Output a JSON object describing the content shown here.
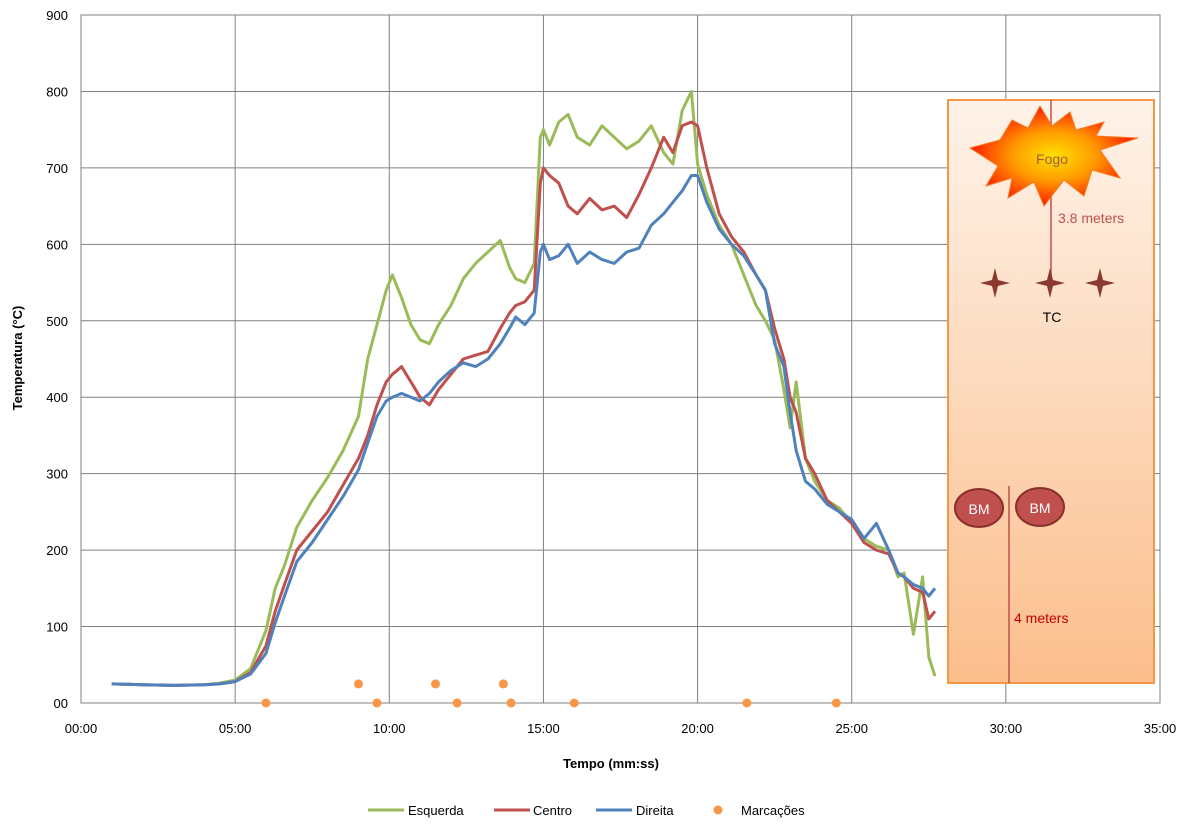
{
  "chart_data": {
    "type": "line",
    "title": "",
    "xlabel": "Tempo (mm:ss)",
    "ylabel": "Temperatura (°C)",
    "x_unit": "minutes",
    "xlim": [
      0,
      35
    ],
    "ylim": [
      0,
      900
    ],
    "x_ticks": [
      {
        "v": 0,
        "label": "00:00"
      },
      {
        "v": 5,
        "label": "05:00"
      },
      {
        "v": 10,
        "label": "10:00"
      },
      {
        "v": 15,
        "label": "15:00"
      },
      {
        "v": 20,
        "label": "20:00"
      },
      {
        "v": 25,
        "label": "25:00"
      },
      {
        "v": 30,
        "label": "30:00"
      },
      {
        "v": 35,
        "label": "35:00"
      }
    ],
    "y_ticks": [
      {
        "v": 0,
        "label": "00"
      },
      {
        "v": 100,
        "label": "100"
      },
      {
        "v": 200,
        "label": "200"
      },
      {
        "v": 300,
        "label": "300"
      },
      {
        "v": 400,
        "label": "400"
      },
      {
        "v": 500,
        "label": "500"
      },
      {
        "v": 600,
        "label": "600"
      },
      {
        "v": 700,
        "label": "700"
      },
      {
        "v": 800,
        "label": "800"
      },
      {
        "v": 900,
        "label": "900"
      }
    ],
    "grid": true,
    "legend_position": "bottom",
    "colors": {
      "Esquerda": "#9BBB59",
      "Centro": "#C0504D",
      "Direita": "#4F81BD",
      "Marcações": "#F79646"
    },
    "series": [
      {
        "name": "Esquerda",
        "x": [
          1.0,
          2.0,
          3.0,
          4.0,
          4.5,
          5.0,
          5.5,
          6.0,
          6.3,
          6.6,
          7.0,
          7.5,
          8.0,
          8.5,
          9.0,
          9.3,
          9.6,
          9.9,
          10.1,
          10.4,
          10.7,
          11.0,
          11.3,
          11.6,
          12.0,
          12.4,
          12.8,
          13.2,
          13.6,
          13.9,
          14.1,
          14.4,
          14.7,
          14.9,
          15.0,
          15.2,
          15.5,
          15.8,
          16.1,
          16.5,
          16.9,
          17.3,
          17.7,
          18.1,
          18.5,
          18.9,
          19.2,
          19.5,
          19.8,
          20.0,
          20.3,
          20.7,
          21.1,
          21.5,
          21.9,
          22.2,
          22.5,
          22.8,
          23.0,
          23.2,
          23.5,
          23.8,
          24.2,
          24.6,
          25.0,
          25.4,
          25.8,
          26.2,
          26.5,
          26.7,
          27.0,
          27.3,
          27.5,
          27.7
        ],
        "values": [
          25,
          24,
          23,
          24,
          26,
          30,
          45,
          95,
          150,
          180,
          230,
          265,
          295,
          330,
          375,
          450,
          495,
          540,
          560,
          530,
          495,
          475,
          470,
          495,
          520,
          555,
          575,
          590,
          605,
          570,
          555,
          550,
          575,
          740,
          750,
          730,
          760,
          770,
          740,
          730,
          755,
          740,
          725,
          735,
          755,
          720,
          705,
          775,
          800,
          705,
          665,
          625,
          600,
          560,
          520,
          500,
          475,
          410,
          360,
          420,
          320,
          290,
          265,
          255,
          235,
          215,
          205,
          200,
          165,
          170,
          90,
          165,
          60,
          35
        ]
      },
      {
        "name": "Centro",
        "x": [
          1.0,
          2.0,
          3.0,
          4.0,
          4.5,
          5.0,
          5.5,
          6.0,
          6.3,
          6.6,
          7.0,
          7.5,
          8.0,
          8.5,
          9.0,
          9.3,
          9.6,
          9.9,
          10.1,
          10.4,
          10.7,
          11.0,
          11.3,
          11.6,
          12.0,
          12.4,
          12.8,
          13.2,
          13.6,
          13.9,
          14.1,
          14.4,
          14.7,
          14.9,
          15.0,
          15.2,
          15.5,
          15.8,
          16.1,
          16.5,
          16.9,
          17.3,
          17.7,
          18.1,
          18.5,
          18.9,
          19.2,
          19.5,
          19.8,
          20.0,
          20.3,
          20.7,
          21.1,
          21.5,
          21.9,
          22.2,
          22.5,
          22.8,
          23.0,
          23.2,
          23.5,
          23.8,
          24.2,
          24.6,
          25.0,
          25.4,
          25.8,
          26.2,
          26.5,
          26.7,
          27.0,
          27.3,
          27.5,
          27.7
        ],
        "values": [
          25,
          24,
          23,
          24,
          25,
          28,
          40,
          75,
          120,
          155,
          200,
          225,
          250,
          285,
          320,
          350,
          390,
          420,
          430,
          440,
          420,
          400,
          390,
          410,
          430,
          450,
          455,
          460,
          490,
          510,
          520,
          525,
          540,
          680,
          700,
          690,
          680,
          650,
          640,
          660,
          645,
          650,
          635,
          665,
          700,
          740,
          720,
          755,
          760,
          755,
          700,
          640,
          610,
          590,
          560,
          540,
          490,
          450,
          400,
          380,
          320,
          300,
          265,
          250,
          235,
          210,
          200,
          195,
          170,
          165,
          150,
          145,
          110,
          120
        ]
      },
      {
        "name": "Direita",
        "x": [
          1.0,
          2.0,
          3.0,
          4.0,
          4.5,
          5.0,
          5.5,
          6.0,
          6.3,
          6.6,
          7.0,
          7.5,
          8.0,
          8.5,
          9.0,
          9.3,
          9.6,
          9.9,
          10.1,
          10.4,
          10.7,
          11.0,
          11.3,
          11.6,
          12.0,
          12.4,
          12.8,
          13.2,
          13.6,
          13.9,
          14.1,
          14.4,
          14.7,
          14.9,
          15.0,
          15.2,
          15.5,
          15.8,
          16.1,
          16.5,
          16.9,
          17.3,
          17.7,
          18.1,
          18.5,
          18.9,
          19.2,
          19.5,
          19.8,
          20.0,
          20.3,
          20.7,
          21.1,
          21.5,
          21.9,
          22.2,
          22.5,
          22.8,
          23.0,
          23.2,
          23.5,
          23.8,
          24.2,
          24.6,
          25.0,
          25.4,
          25.8,
          26.2,
          26.5,
          26.7,
          27.0,
          27.3,
          27.5,
          27.7
        ],
        "values": [
          25,
          24,
          23,
          24,
          25,
          28,
          38,
          65,
          105,
          140,
          185,
          210,
          240,
          270,
          305,
          340,
          375,
          395,
          400,
          405,
          400,
          395,
          405,
          420,
          435,
          445,
          440,
          450,
          470,
          490,
          505,
          495,
          510,
          590,
          600,
          580,
          585,
          600,
          575,
          590,
          580,
          575,
          590,
          595,
          625,
          640,
          655,
          670,
          690,
          690,
          655,
          620,
          600,
          585,
          560,
          540,
          470,
          440,
          380,
          330,
          290,
          280,
          260,
          250,
          240,
          215,
          235,
          200,
          170,
          165,
          155,
          150,
          140,
          150
        ]
      }
    ],
    "markers": {
      "name": "Marcações",
      "x": [
        6.0,
        9.0,
        9.6,
        11.5,
        12.2,
        13.7,
        13.95,
        16.0,
        21.6,
        24.5
      ],
      "values": [
        0,
        25,
        0,
        25,
        0,
        25,
        0,
        0,
        0,
        0
      ]
    }
  },
  "inset": {
    "fire_label": "Fogo",
    "distance_label": "3.8 meters",
    "tc_label": "TC",
    "bm_labels": [
      "BM",
      "BM"
    ],
    "floor_label": "4 meters"
  }
}
